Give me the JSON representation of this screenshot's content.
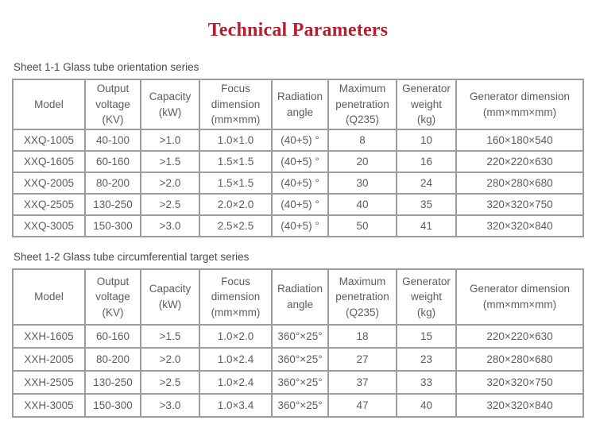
{
  "page": {
    "title": "Technical Parameters"
  },
  "colors": {
    "title": "#b32030",
    "text": "#5d5d5d",
    "caption": "#4a4a4a",
    "border": "#9c9c9c"
  },
  "tables": [
    {
      "caption": "Sheet 1-1 Glass tube orientation series",
      "headers": [
        [
          "Model"
        ],
        [
          "Output",
          "voltage",
          "(KV)"
        ],
        [
          "Capacity",
          "(kW)"
        ],
        [
          "Focus",
          "dimension",
          "(mm×mm)"
        ],
        [
          "Radiation",
          "angle"
        ],
        [
          "Maximum",
          "penetration",
          "(Q235)"
        ],
        [
          "Generator",
          "weight",
          "(kg)"
        ],
        [
          "Generator dimension",
          "(mm×mm×mm)"
        ]
      ],
      "rows": [
        [
          "XXQ-1005",
          "40-100",
          ">1.0",
          "1.0×1.0",
          "(40+5) °",
          "8",
          "10",
          "160×180×540"
        ],
        [
          "XXQ-1605",
          "60-160",
          ">1.5",
          "1.5×1.5",
          "(40+5) °",
          "20",
          "16",
          "220×220×630"
        ],
        [
          "XXQ-2005",
          "80-200",
          ">2.0",
          "1.5×1.5",
          "(40+5) °",
          "30",
          "24",
          "280×280×680"
        ],
        [
          "XXQ-2505",
          "130-250",
          ">2.5",
          "2.0×2.0",
          "(40+5) °",
          "40",
          "35",
          "320×320×750"
        ],
        [
          "XXQ-3005",
          "150-300",
          ">3.0",
          "2.5×2.5",
          "(40+5) °",
          "50",
          "41",
          "320×320×840"
        ]
      ]
    },
    {
      "caption": "Sheet 1-2 Glass tube circumferential target series",
      "headers": [
        [
          "Model"
        ],
        [
          "Output",
          "voltage",
          "(KV)"
        ],
        [
          "Capacity",
          "(kW)"
        ],
        [
          "Focus",
          "dimension",
          "(mm×mm)"
        ],
        [
          "Radiation",
          "angle"
        ],
        [
          "Maximum",
          "penetration",
          "(Q235)"
        ],
        [
          "Generator",
          "weight",
          "(kg)"
        ],
        [
          "Generator dimension",
          "(mm×mm×mm)"
        ]
      ],
      "rows": [
        [
          "XXH-1605",
          "60-160",
          ">1.5",
          "1.0×2.0",
          "360°×25°",
          "18",
          "15",
          "220×220×630"
        ],
        [
          "XXH-2005",
          "80-200",
          ">2.0",
          "1.0×2.4",
          "360°×25°",
          "27",
          "23",
          "280×280×680"
        ],
        [
          "XXH-2505",
          "130-250",
          ">2.5",
          "1.0×2.4",
          "360°×25°",
          "37",
          "33",
          "320×320×750"
        ],
        [
          "XXH-3005",
          "150-300",
          ">3.0",
          "1.0×3.4",
          "360°×25°",
          "47",
          "40",
          "320×320×840"
        ]
      ]
    }
  ]
}
